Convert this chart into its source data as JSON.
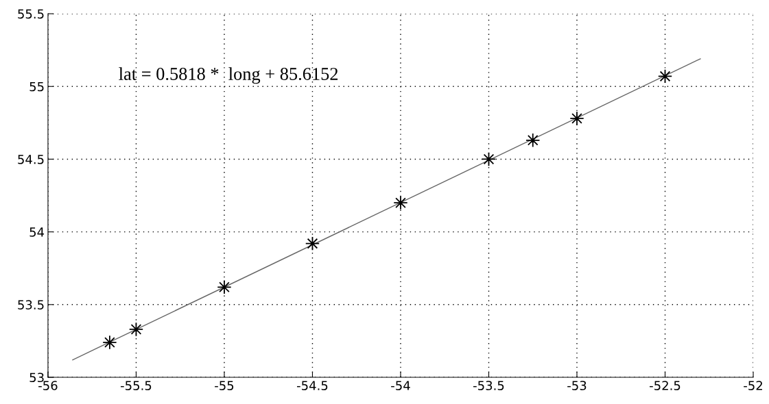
{
  "chart_data": {
    "type": "scatter",
    "annotations": [
      "lat = 0.5818 *  long + 85.6152"
    ],
    "xlim": [
      -56,
      -52
    ],
    "ylim": [
      53,
      55.5
    ],
    "xticks": [
      -56,
      -55.5,
      -55,
      -54.5,
      -54,
      -53.5,
      -53,
      -52.5,
      -52
    ],
    "yticks": [
      53,
      53.5,
      54,
      54.5,
      55,
      55.5
    ],
    "grid": true,
    "marker": "star",
    "series": [
      {
        "color": "#000000",
        "x": [
          -55.65,
          -55.5,
          -55,
          -54.5,
          -54,
          -53.5,
          -53.25,
          -53,
          -52.5
        ],
        "values": [
          53.24,
          53.33,
          53.62,
          53.92,
          54.2,
          54.5,
          54.63,
          54.78,
          55.07
        ]
      },
      {
        "type": "line",
        "color": "#666666",
        "marker": "none",
        "x": [
          -55.86,
          -52.3
        ],
        "values": [
          53.12,
          55.19
        ]
      }
    ]
  }
}
